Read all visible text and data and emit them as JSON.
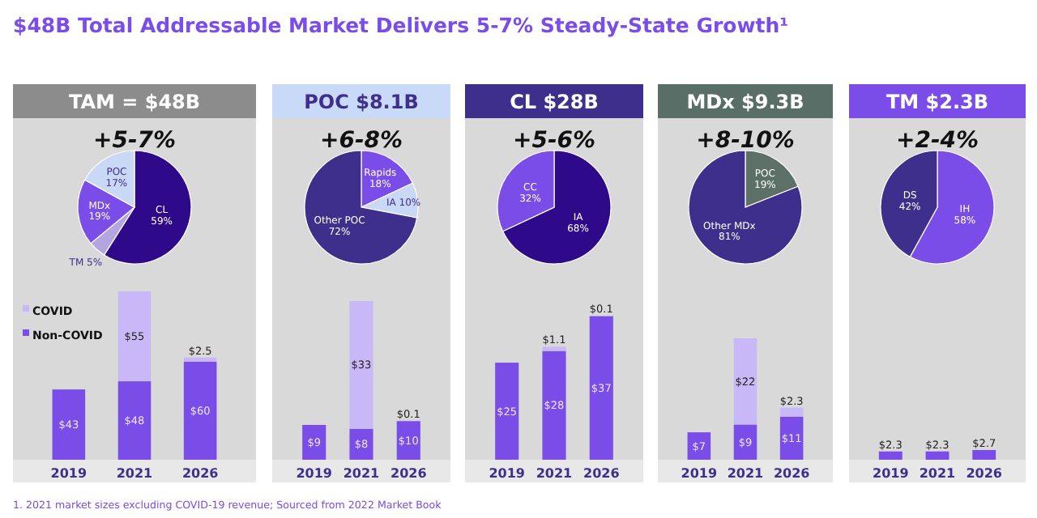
{
  "chart_data": [
    {
      "type": "other",
      "title": "$48B Total Addressable Market Delivers 5-7% Steady-State Growth¹",
      "annotations": [
        "1. 2021 market sizes excluding COVID-19 revenue; Sourced from 2022 Market Book"
      ]
    },
    {
      "type": "pie",
      "title": "TAM = $48B",
      "subtitle": "+5-7%",
      "categories": [
        "CL",
        "TM",
        "MDx",
        "POC"
      ],
      "values": [
        59,
        5,
        19,
        17
      ],
      "value_labels": [
        "59%",
        "5%",
        "19%",
        "17%"
      ],
      "colors": [
        "#2e0a8a",
        "#b3a6e0",
        "#7a4de8",
        "#c9d8f5"
      ]
    },
    {
      "type": "bar",
      "stacked": true,
      "categories": [
        "2019",
        "2021",
        "2026"
      ],
      "legend": "top left",
      "series": [
        {
          "name": "Non-COVID",
          "color": "#7a4de8",
          "values": [
            43,
            48,
            60
          ],
          "value_labels": [
            "$43",
            "$48",
            "$60"
          ]
        },
        {
          "name": "COVID",
          "color": "#c9b8f7",
          "values": [
            null,
            55,
            2.5
          ],
          "value_labels": [
            null,
            "$55",
            "$2.5"
          ]
        }
      ]
    },
    {
      "type": "pie",
      "title": "POC $8.1B",
      "subtitle": "+6-8%",
      "categories": [
        "Rapids",
        "IA",
        "Other POC"
      ],
      "values": [
        18,
        10,
        72
      ],
      "value_labels": [
        "18%",
        "10%",
        "72%"
      ],
      "colors": [
        "#7a4de8",
        "#c9d8f5",
        "#3e2f8c"
      ]
    },
    {
      "type": "bar",
      "stacked": true,
      "categories": [
        "2019",
        "2021",
        "2026"
      ],
      "series": [
        {
          "color": "#7a4de8",
          "values": [
            9,
            8,
            10
          ],
          "value_labels": [
            "$9",
            "$8",
            "$10"
          ]
        },
        {
          "color": "#c9b8f7",
          "values": [
            null,
            33,
            0.1
          ],
          "value_labels": [
            null,
            "$33",
            "$0.1"
          ]
        }
      ]
    },
    {
      "type": "pie",
      "title": "CL $28B",
      "subtitle": "+5-6%",
      "categories": [
        "IA",
        "CC"
      ],
      "values": [
        68,
        32
      ],
      "value_labels": [
        "68%",
        "32%"
      ],
      "colors": [
        "#2e0a8a",
        "#7a4de8"
      ]
    },
    {
      "type": "bar",
      "stacked": true,
      "categories": [
        "2019",
        "2021",
        "2026"
      ],
      "series": [
        {
          "color": "#7a4de8",
          "values": [
            25,
            28,
            37
          ],
          "value_labels": [
            "$25",
            "$28",
            "$37"
          ]
        },
        {
          "color": "#c9b8f7",
          "values": [
            null,
            1.1,
            0.1
          ],
          "value_labels": [
            null,
            "$1.1",
            "$0.1"
          ]
        }
      ]
    },
    {
      "type": "pie",
      "title": "MDx $9.3B",
      "subtitle": "+8-10%",
      "categories": [
        "POC",
        "Other MDx"
      ],
      "values": [
        19,
        81
      ],
      "value_labels": [
        "19%",
        "81%"
      ],
      "colors": [
        "#5c7068",
        "#3e2f8c"
      ]
    },
    {
      "type": "bar",
      "stacked": true,
      "categories": [
        "2019",
        "2021",
        "2026"
      ],
      "series": [
        {
          "color": "#7a4de8",
          "values": [
            7,
            9,
            11
          ],
          "value_labels": [
            "$7",
            "$9",
            "$11"
          ]
        },
        {
          "color": "#c9b8f7",
          "values": [
            null,
            22,
            2.3
          ],
          "value_labels": [
            null,
            "$22",
            "$2.3"
          ]
        }
      ]
    },
    {
      "type": "pie",
      "title": "TM $2.3B",
      "subtitle": "+2-4%",
      "categories": [
        "IH",
        "DS"
      ],
      "values": [
        58,
        42
      ],
      "value_labels": [
        "58%",
        "42%"
      ],
      "colors": [
        "#7a4de8",
        "#3e2f8c"
      ]
    },
    {
      "type": "bar",
      "stacked": true,
      "categories": [
        "2019",
        "2021",
        "2026"
      ],
      "series": [
        {
          "color": "#7a4de8",
          "values": [
            2.3,
            2.3,
            2.7
          ],
          "value_labels": [
            "$2.3",
            "$2.3",
            "$2.7"
          ]
        }
      ]
    }
  ]
}
